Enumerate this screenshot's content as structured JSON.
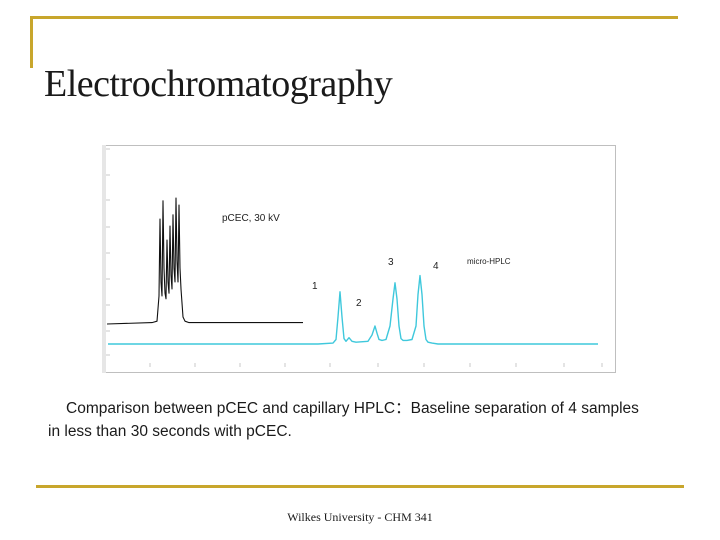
{
  "slide": {
    "title": "Electrochromatography",
    "caption_line1": "Comparison between pCEC and capillary HPLC：Baseline separation of 4 samples",
    "caption_line2": "in less than 30 seconds with pCEC.",
    "footer": "Wilkes University - CHM 341",
    "accent_color": "#c8a62c"
  },
  "chart_data": {
    "type": "line",
    "title": "",
    "xlabel": "",
    "ylabel": "",
    "annotations": [
      "pCEC, 30 kV",
      "micro-HPLC",
      "1",
      "2",
      "3",
      "4"
    ],
    "series": [
      {
        "name": "pCEC, 30 kV",
        "color": "#111111",
        "x": [
          0,
          45,
          50,
          52,
          53,
          54,
          55,
          56,
          57,
          58,
          59,
          60,
          61,
          62,
          63,
          64,
          65,
          66,
          67,
          68,
          69,
          70,
          71,
          72,
          73,
          74,
          75,
          76,
          78,
          82,
          100,
          196
        ],
        "y": [
          0.0,
          0.01,
          0.02,
          0.2,
          0.75,
          0.3,
          0.2,
          0.88,
          0.4,
          0.22,
          0.18,
          0.6,
          0.3,
          0.22,
          0.7,
          0.35,
          0.25,
          0.78,
          0.4,
          0.3,
          0.9,
          0.45,
          0.3,
          0.85,
          0.4,
          0.25,
          0.15,
          0.05,
          0.02,
          0.01,
          0.01,
          0.01
        ]
      },
      {
        "name": "micro-HPLC",
        "color": "#3fc8dc",
        "x": [
          0,
          210,
          225,
          228,
          230,
          232,
          234,
          236,
          238,
          241,
          244,
          248,
          260,
          264,
          267,
          269,
          271,
          274,
          278,
          282,
          285,
          287,
          289,
          291,
          293,
          295,
          299,
          304,
          308,
          310,
          312,
          314,
          316,
          318,
          320,
          324,
          330,
          340,
          400,
          490
        ],
        "y": [
          0.0,
          0.0,
          0.01,
          0.05,
          0.3,
          0.58,
          0.3,
          0.06,
          0.03,
          0.07,
          0.03,
          0.02,
          0.03,
          0.1,
          0.2,
          0.12,
          0.05,
          0.04,
          0.05,
          0.2,
          0.5,
          0.68,
          0.5,
          0.2,
          0.06,
          0.04,
          0.04,
          0.05,
          0.2,
          0.55,
          0.76,
          0.55,
          0.2,
          0.05,
          0.02,
          0.01,
          0.0,
          0.0,
          0.0,
          0.0
        ]
      }
    ]
  }
}
